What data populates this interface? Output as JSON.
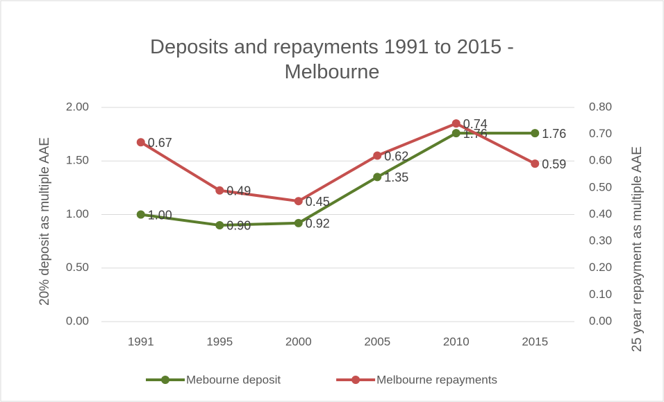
{
  "chart_data": {
    "type": "line",
    "title": "Deposits and repayments 1991 to 2015 - Melbourne",
    "y_label": "20% deposit as multiple AAE",
    "y2_label": "25 year repayment as multiple AAE",
    "categories": [
      "1991",
      "1995",
      "2000",
      "2005",
      "2010",
      "2015"
    ],
    "series": [
      {
        "name": "Mebourne deposit",
        "color": "#5b7d2c",
        "values": [
          1.0,
          0.9,
          0.92,
          1.35,
          1.76,
          1.76
        ],
        "value_labels": [
          "1.00",
          "0.90",
          "0.92",
          "1.35",
          "1.76",
          "1.76"
        ]
      },
      {
        "name": "Melbourne repayments",
        "color": "#c5504e",
        "axis": "y2",
        "values": [
          0.67,
          0.49,
          0.45,
          0.62,
          0.74,
          0.59
        ]
      }
    ],
    "ylim": [
      0,
      2
    ],
    "yticks": [
      {
        "value": 0,
        "label": "0.00"
      },
      {
        "value": 0.5,
        "label": "0.50"
      },
      {
        "value": 1,
        "label": "1.00"
      },
      {
        "value": 1.5,
        "label": "1.50"
      },
      {
        "value": 2,
        "label": "2.00"
      }
    ],
    "y2lim": [
      0,
      0.8
    ],
    "y2ticks": [
      {
        "value": 0,
        "label": "0.00"
      },
      {
        "value": 0.1,
        "label": "0.10"
      },
      {
        "value": 0.2,
        "label": "0.20"
      },
      {
        "value": 0.3,
        "label": "0.30"
      },
      {
        "value": 0.4,
        "label": "0.40"
      },
      {
        "value": 0.5,
        "label": "0.50"
      },
      {
        "value": 0.6,
        "label": "0.60"
      },
      {
        "value": 0.7,
        "label": "0.70"
      },
      {
        "value": 0.8,
        "label": "0.80"
      }
    ],
    "grid": true,
    "legend": "bottom"
  }
}
